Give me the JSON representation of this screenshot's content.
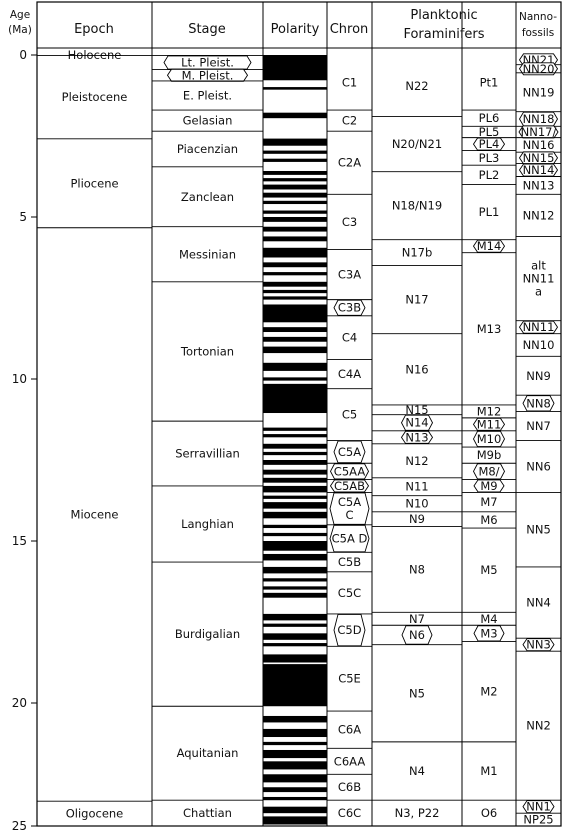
{
  "headers": {
    "age": [
      "Age",
      "(Ma)"
    ],
    "epoch": "Epoch",
    "stage": "Stage",
    "polarity": "Polarity",
    "chron": "Chron",
    "forams": [
      "Planktonic",
      "Foraminifers"
    ],
    "nanno": [
      "Nanno-",
      "fossils"
    ]
  },
  "age_ticks": [
    {
      "age": 0,
      "label": "0"
    },
    {
      "age": 5,
      "label": "5"
    },
    {
      "age": 10,
      "label": "10"
    },
    {
      "age": 15,
      "label": "15"
    },
    {
      "age": 20,
      "label": "20"
    },
    {
      "age": 25,
      "label": "25"
    }
  ],
  "epochs": [
    {
      "label": "Holocene",
      "top": 0,
      "bottom": 0.012
    },
    {
      "label": "Pleistocene",
      "top": 0.012,
      "bottom": 2.588
    },
    {
      "label": "Pliocene",
      "top": 2.588,
      "bottom": 5.332
    },
    {
      "label": "Miocene",
      "top": 5.332,
      "bottom": 23.03
    },
    {
      "label": "Oligocene",
      "top": 23.03,
      "bottom": 24.1
    }
  ],
  "stages": [
    {
      "label": "Lt. Pleist.",
      "top": 0.012,
      "bottom": 0.45,
      "boxed": true
    },
    {
      "label": "M. Pleist.",
      "top": 0.45,
      "bottom": 0.8,
      "boxed": true
    },
    {
      "label": "E. Pleist.",
      "top": 0.8,
      "bottom": 1.7
    },
    {
      "label": "Gelasian",
      "top": 1.7,
      "bottom": 2.35
    },
    {
      "label": "Piacenzian",
      "top": 2.35,
      "bottom": 3.45
    },
    {
      "label": "Zanclean",
      "top": 3.45,
      "bottom": 5.3
    },
    {
      "label": "Messinian",
      "top": 5.3,
      "bottom": 7.0
    },
    {
      "label": "Tortonian",
      "top": 7.0,
      "bottom": 11.3
    },
    {
      "label": "Serravillian",
      "top": 11.3,
      "bottom": 13.3
    },
    {
      "label": "Langhian",
      "top": 13.3,
      "bottom": 15.65
    },
    {
      "label": "Burdigalian",
      "top": 15.65,
      "bottom": 20.1
    },
    {
      "label": "Aquitanian",
      "top": 20.1,
      "bottom": 23.0
    },
    {
      "label": "Chattian",
      "top": 23.0,
      "bottom": 24.1
    }
  ],
  "polarity_normal": [
    [
      0,
      0.78
    ],
    [
      0.99,
      1.07
    ],
    [
      1.78,
      1.95
    ],
    [
      2.58,
      2.8
    ],
    [
      2.95,
      3.05
    ],
    [
      3.2,
      3.3
    ],
    [
      3.58,
      3.7
    ],
    [
      3.8,
      3.9
    ],
    [
      4.0,
      4.15
    ],
    [
      4.25,
      4.4
    ],
    [
      4.5,
      4.6
    ],
    [
      4.8,
      4.9
    ],
    [
      5.0,
      5.15
    ],
    [
      5.3,
      5.45
    ],
    [
      5.6,
      5.75
    ],
    [
      5.95,
      6.25
    ],
    [
      6.4,
      6.55
    ],
    [
      6.7,
      6.8
    ],
    [
      7.0,
      7.15
    ],
    [
      7.25,
      7.35
    ],
    [
      7.45,
      7.55
    ],
    [
      7.7,
      8.25
    ],
    [
      8.4,
      8.55
    ],
    [
      8.7,
      8.85
    ],
    [
      9.0,
      9.2
    ],
    [
      9.5,
      9.75
    ],
    [
      9.95,
      10.05
    ],
    [
      10.15,
      11.05
    ],
    [
      11.5,
      11.6
    ],
    [
      11.7,
      11.8
    ],
    [
      12.0,
      12.15
    ],
    [
      12.25,
      12.35
    ],
    [
      12.5,
      12.65
    ],
    [
      12.8,
      12.95
    ],
    [
      13.05,
      13.2
    ],
    [
      13.3,
      13.5
    ],
    [
      13.6,
      13.7
    ],
    [
      13.8,
      14.0
    ],
    [
      14.1,
      14.3
    ],
    [
      14.5,
      14.6
    ],
    [
      14.75,
      14.85
    ],
    [
      15.0,
      15.3
    ],
    [
      15.4,
      15.6
    ],
    [
      15.8,
      16.0
    ],
    [
      16.15,
      16.25
    ],
    [
      16.4,
      16.5
    ],
    [
      16.6,
      16.75
    ],
    [
      17.25,
      17.45
    ],
    [
      17.55,
      17.65
    ],
    [
      17.85,
      18.05
    ],
    [
      18.15,
      18.25
    ],
    [
      18.5,
      18.75
    ],
    [
      18.8,
      20.1
    ],
    [
      20.4,
      20.6
    ],
    [
      20.8,
      21.05
    ],
    [
      21.2,
      21.3
    ],
    [
      21.45,
      21.7
    ],
    [
      21.8,
      22.05
    ],
    [
      22.2,
      22.45
    ],
    [
      22.6,
      22.75
    ],
    [
      22.9,
      23.0
    ],
    [
      23.2,
      23.4
    ],
    [
      23.5,
      23.75
    ]
  ],
  "chrons": [
    {
      "label": "C1",
      "top": 0,
      "bottom": 1.7
    },
    {
      "label": "C2",
      "top": 1.7,
      "bottom": 2.35
    },
    {
      "label": "C2A",
      "top": 2.35,
      "bottom": 4.3
    },
    {
      "label": "C3",
      "top": 4.3,
      "bottom": 6.0
    },
    {
      "label": "C3A",
      "top": 6.0,
      "bottom": 7.55
    },
    {
      "label": "C3B",
      "top": 7.55,
      "bottom": 8.05,
      "boxed": true
    },
    {
      "label": "C4",
      "top": 8.05,
      "bottom": 9.4
    },
    {
      "label": "C4A",
      "top": 9.4,
      "bottom": 10.3
    },
    {
      "label": "C5",
      "top": 10.3,
      "bottom": 11.9
    },
    {
      "label": "C5A",
      "top": 11.9,
      "bottom": 12.6,
      "boxed": true
    },
    {
      "label": "C5AA",
      "top": 12.6,
      "bottom": 13.1,
      "boxed": true
    },
    {
      "label": "C5AB",
      "top": 13.1,
      "bottom": 13.5,
      "boxed": true
    },
    {
      "label": "C5A C",
      "top": 13.5,
      "bottom": 14.5,
      "boxed": true
    },
    {
      "label": "C5A D",
      "top": 14.5,
      "bottom": 15.35,
      "boxed": true
    },
    {
      "label": "C5B",
      "top": 15.35,
      "bottom": 15.95
    },
    {
      "label": "C5C",
      "top": 15.95,
      "bottom": 17.25
    },
    {
      "label": "C5D",
      "top": 17.25,
      "bottom": 18.25,
      "boxed": true
    },
    {
      "label": "C5E",
      "top": 18.25,
      "bottom": 20.25
    },
    {
      "label": "C6A",
      "top": 20.25,
      "bottom": 21.4
    },
    {
      "label": "C6AA",
      "top": 21.4,
      "bottom": 22.2
    },
    {
      "label": "C6B",
      "top": 22.2,
      "bottom": 23.0
    },
    {
      "label": "C6C",
      "top": 23.0,
      "bottom": 24.1
    }
  ],
  "forams_left": [
    {
      "label": "N22",
      "top": 0,
      "bottom": 1.9
    },
    {
      "label": "N20/N21",
      "top": 1.9,
      "bottom": 3.6
    },
    {
      "label": "N18/N19",
      "top": 3.6,
      "bottom": 5.7
    },
    {
      "label": "N17b",
      "top": 5.7,
      "bottom": 6.5
    },
    {
      "label": "N17",
      "top": 6.5,
      "bottom": 8.6
    },
    {
      "label": "N16",
      "top": 8.6,
      "bottom": 10.8
    },
    {
      "label": "N15",
      "top": 10.8,
      "bottom": 11.1
    },
    {
      "label": "N14",
      "top": 11.1,
      "bottom": 11.6,
      "boxed": true
    },
    {
      "label": "N13",
      "top": 11.6,
      "bottom": 12.0,
      "boxed": true
    },
    {
      "label": "N12",
      "top": 12.0,
      "bottom": 13.05
    },
    {
      "label": "N11",
      "top": 13.05,
      "bottom": 13.6
    },
    {
      "label": "N10",
      "top": 13.6,
      "bottom": 14.1
    },
    {
      "label": "N9",
      "top": 14.1,
      "bottom": 14.55
    },
    {
      "label": "N8",
      "top": 14.55,
      "bottom": 17.2
    },
    {
      "label": "N7",
      "top": 17.2,
      "bottom": 17.6
    },
    {
      "label": "N6",
      "top": 17.6,
      "bottom": 18.2,
      "boxed": true
    },
    {
      "label": "N5",
      "top": 18.2,
      "bottom": 21.2
    },
    {
      "label": "N4",
      "top": 21.2,
      "bottom": 23.0
    },
    {
      "label": "N3, P22",
      "top": 23.0,
      "bottom": 24.1
    }
  ],
  "forams_right": [
    {
      "label": "Pt1",
      "top": 0,
      "bottom": 1.7
    },
    {
      "label": "PL6",
      "top": 1.7,
      "bottom": 2.2
    },
    {
      "label": "PL5",
      "top": 2.2,
      "bottom": 2.55
    },
    {
      "label": "PL4",
      "top": 2.55,
      "bottom": 2.95,
      "boxed": true
    },
    {
      "label": "PL3",
      "top": 2.95,
      "bottom": 3.4
    },
    {
      "label": "PL2",
      "top": 3.4,
      "bottom": 4.0
    },
    {
      "label": "PL1",
      "top": 4.0,
      "bottom": 5.7
    },
    {
      "label": "M14",
      "top": 5.7,
      "bottom": 6.1,
      "boxed": true
    },
    {
      "label": "M13",
      "top": 6.1,
      "bottom": 10.8
    },
    {
      "label": "M12",
      "top": 10.8,
      "bottom": 11.2
    },
    {
      "label": "M11",
      "top": 11.2,
      "bottom": 11.6,
      "boxed": true
    },
    {
      "label": "M10",
      "top": 11.6,
      "bottom": 12.1,
      "boxed": true
    },
    {
      "label": "M9b",
      "top": 12.1,
      "bottom": 12.6
    },
    {
      "label": "M8/",
      "top": 12.6,
      "bottom": 13.1,
      "boxed": true
    },
    {
      "label": "M9",
      "top": 13.1,
      "bottom": 13.5,
      "boxed": true
    },
    {
      "label": "M7",
      "top": 13.5,
      "bottom": 14.1
    },
    {
      "label": "M6",
      "top": 14.1,
      "bottom": 14.6
    },
    {
      "label": "M5",
      "top": 14.6,
      "bottom": 17.2
    },
    {
      "label": "M4",
      "top": 17.2,
      "bottom": 17.6
    },
    {
      "label": "M3",
      "top": 17.6,
      "bottom": 18.1,
      "boxed": true
    },
    {
      "label": "M2",
      "top": 18.1,
      "bottom": 21.2
    },
    {
      "label": "M1",
      "top": 21.2,
      "bottom": 23.0
    },
    {
      "label": "O6",
      "top": 23.0,
      "bottom": 24.1
    }
  ],
  "nannofossils": [
    {
      "label": "NN21",
      "top": 0,
      "bottom": 0.3,
      "boxed": true
    },
    {
      "label": "NN20",
      "top": 0.3,
      "bottom": 0.55,
      "boxed": true
    },
    {
      "label": "NN19",
      "top": 0.55,
      "bottom": 1.75
    },
    {
      "label": "NN18",
      "top": 1.75,
      "bottom": 2.2,
      "boxed": true
    },
    {
      "label": "NN17/",
      "top": 2.2,
      "bottom": 2.55,
      "boxed": true
    },
    {
      "label": "NN16",
      "top": 2.55,
      "bottom": 3.0
    },
    {
      "label": "NN15",
      "top": 3.0,
      "bottom": 3.35,
      "boxed": true
    },
    {
      "label": "NN14",
      "top": 3.35,
      "bottom": 3.75,
      "boxed": true
    },
    {
      "label": "NN13",
      "top": 3.75,
      "bottom": 4.3
    },
    {
      "label": "NN12",
      "top": 4.3,
      "bottom": 5.6
    },
    {
      "label": "alt NN11 a",
      "top": 5.6,
      "bottom": 8.2
    },
    {
      "label": "NN11",
      "top": 8.2,
      "bottom": 8.6,
      "boxed": true
    },
    {
      "label": "NN10",
      "top": 8.6,
      "bottom": 9.3
    },
    {
      "label": "NN9",
      "top": 9.3,
      "bottom": 10.5
    },
    {
      "label": "NN8",
      "top": 10.5,
      "bottom": 11.0,
      "boxed": true
    },
    {
      "label": "NN7",
      "top": 11.0,
      "bottom": 11.9
    },
    {
      "label": "NN6",
      "top": 11.9,
      "bottom": 13.5
    },
    {
      "label": "NN5",
      "top": 13.5,
      "bottom": 15.8
    },
    {
      "label": "NN4",
      "top": 15.8,
      "bottom": 18.0
    },
    {
      "label": "NN3",
      "top": 18.0,
      "bottom": 18.4,
      "boxed": true
    },
    {
      "label": "NN2",
      "top": 18.4,
      "bottom": 23.0
    },
    {
      "label": "NN1",
      "top": 23.0,
      "bottom": 23.4,
      "boxed": true
    },
    {
      "label": "NP25",
      "top": 23.4,
      "bottom": 24.1
    }
  ]
}
